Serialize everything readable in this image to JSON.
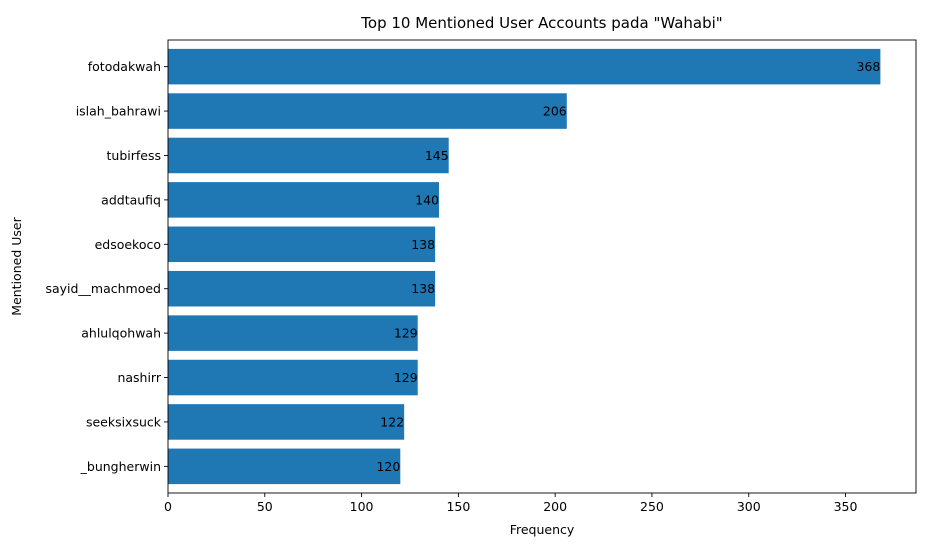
{
  "chart_data": {
    "type": "bar",
    "orientation": "horizontal",
    "title": "Top 10 Mentioned User Accounts pada \"Wahabi\"",
    "xlabel": "Frequency",
    "ylabel": "Mentioned User",
    "xlim": [
      0,
      386.4
    ],
    "xticks": [
      0,
      50,
      100,
      150,
      200,
      250,
      300,
      350
    ],
    "grid": false,
    "bar_color": "#1f77b4",
    "categories": [
      "fotodakwah",
      "islah_bahrawi",
      "tubirfess",
      "addtaufiq",
      "edsoekoco",
      "sayid__machmoed",
      "ahlulqohwah",
      "nashirr",
      "seeksixsuck",
      "_bungherwin"
    ],
    "values": [
      368,
      206,
      145,
      140,
      138,
      138,
      129,
      129,
      122,
      120
    ]
  }
}
